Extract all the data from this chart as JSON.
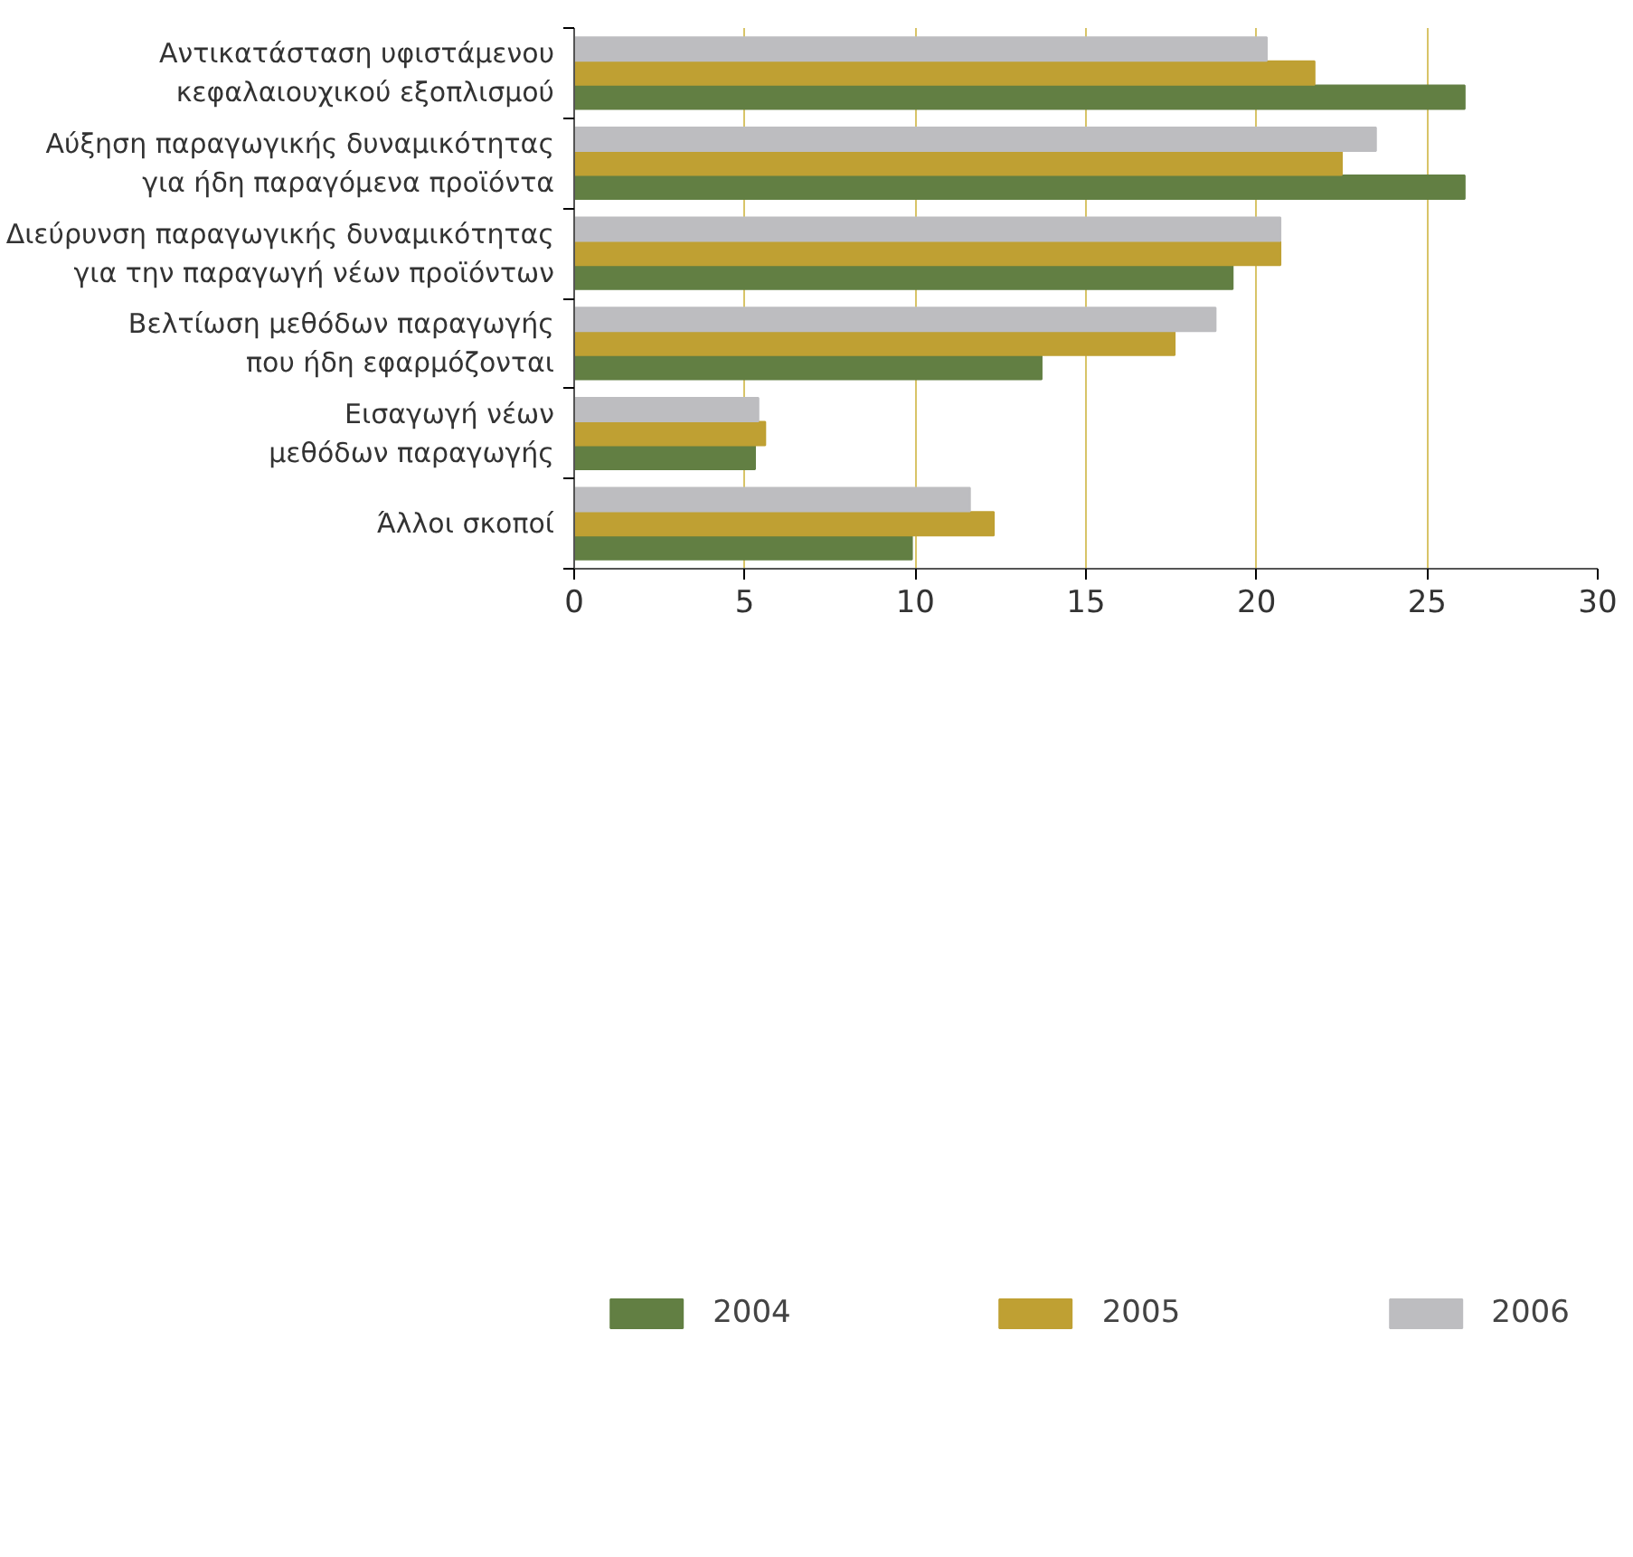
{
  "chart_data": {
    "type": "bar",
    "orientation": "horizontal",
    "categories": [
      "Αντικατάσταση υφιστάμενου κεφαλαιουχικού εξοπλισμού",
      "Αύξηση παραγωγικής δυναμικότητας για ήδη παραγόμενα προϊόντα",
      "Διεύρυνση παραγωγικής δυναμικότητας για την παραγωγή νέων προϊόντων",
      "Βελτίωση μεθόδων παραγωγής που ήδη εφαρμόζονται",
      "Εισαγωγή νέων μεθόδων παραγωγής",
      "Άλλοι σκοποί"
    ],
    "series": [
      {
        "name": "2004",
        "color": "#627f43",
        "values": [
          26.1,
          26.1,
          19.3,
          13.7,
          5.3,
          9.9
        ]
      },
      {
        "name": "2005",
        "color": "#bfa033",
        "values": [
          21.7,
          22.5,
          20.7,
          17.6,
          5.6,
          12.3
        ]
      },
      {
        "name": "2006",
        "color": "#bdbdc0",
        "values": [
          20.3,
          23.5,
          20.7,
          18.8,
          5.4,
          11.6
        ]
      }
    ],
    "xlim": [
      0,
      30
    ],
    "xticks": [
      0,
      5,
      10,
      15,
      20,
      25,
      30
    ],
    "grid": "x",
    "legend": "bottom"
  }
}
